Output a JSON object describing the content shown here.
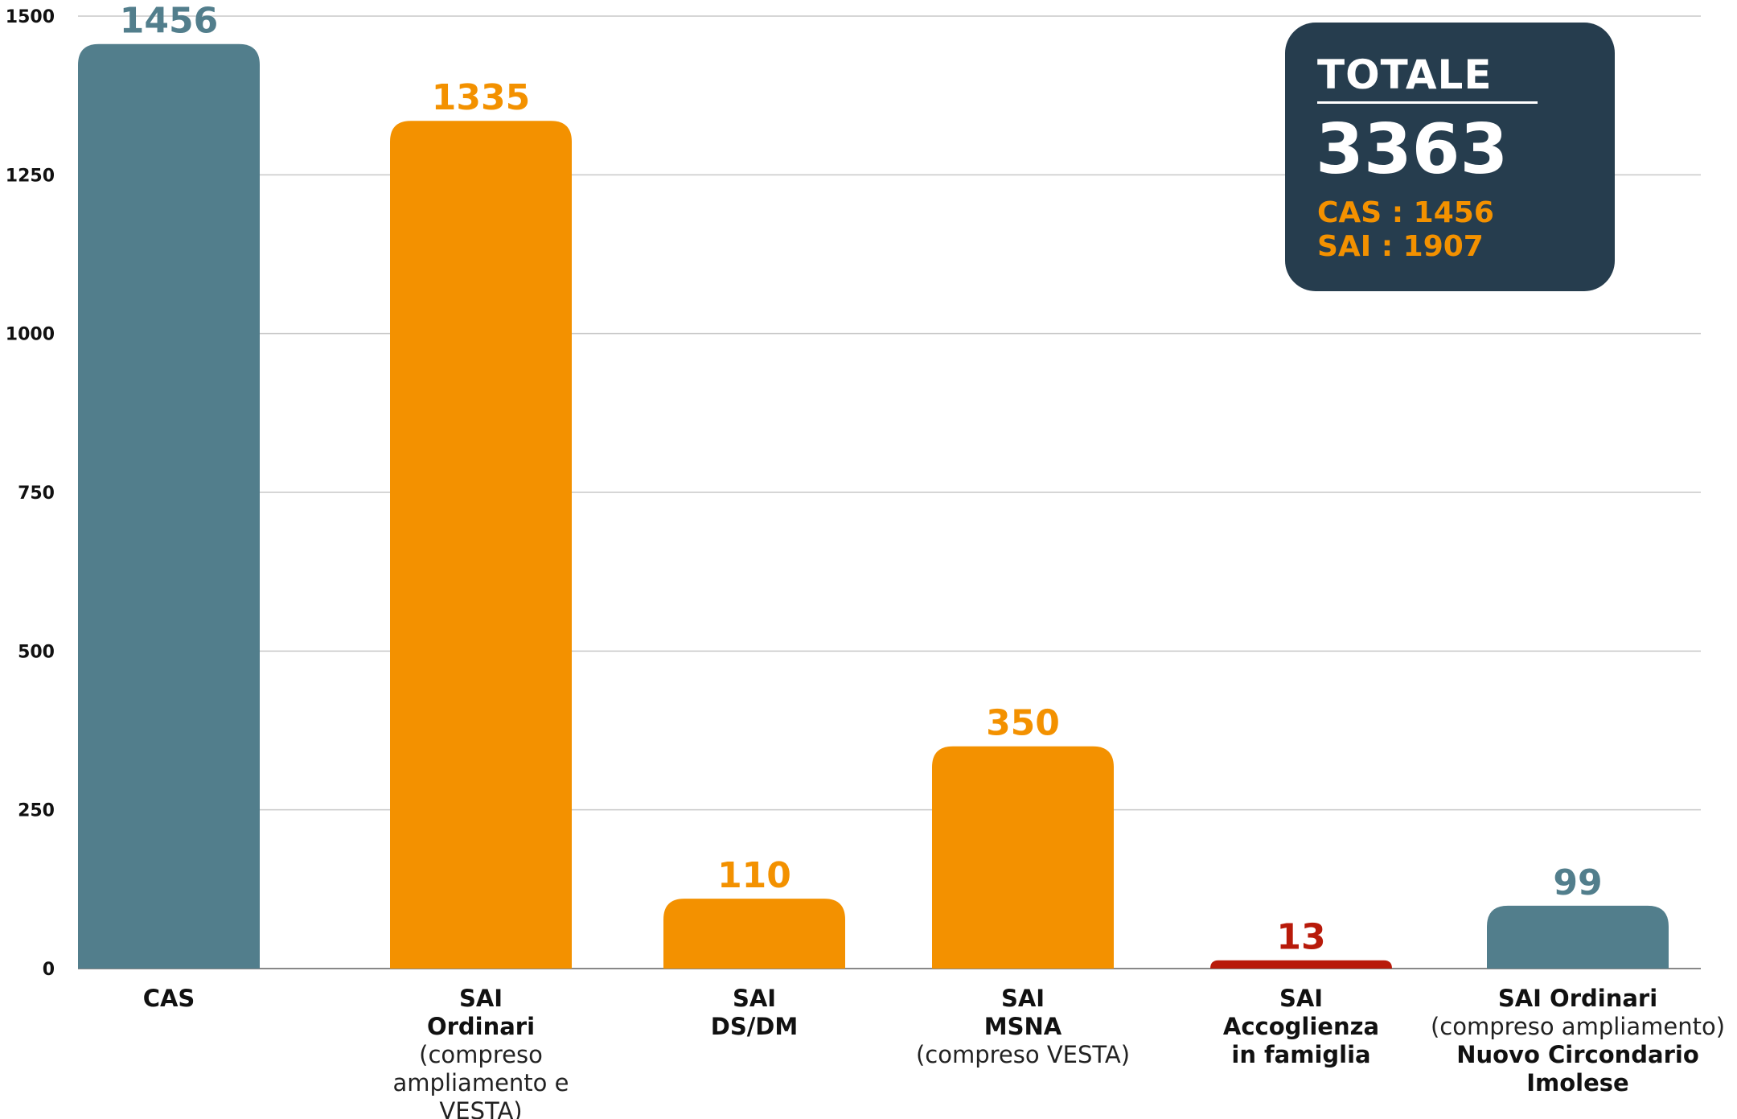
{
  "chart_data": {
    "type": "bar",
    "categories": [
      [
        "CAS"
      ],
      [
        "SAI",
        "Ordinari",
        "(compreso",
        "ampliamento e",
        "VESTA)"
      ],
      [
        "SAI",
        "DS/DM"
      ],
      [
        "SAI",
        "MSNA",
        "(compreso VESTA)"
      ],
      [
        "SAI",
        "Accoglienza",
        "in famiglia"
      ],
      [
        "SAI Ordinari",
        "(compreso ampliamento)",
        "Nuovo Circondario",
        "Imolese"
      ]
    ],
    "category_bold": [
      [
        true
      ],
      [
        true,
        true,
        false,
        false,
        false
      ],
      [
        true,
        true
      ],
      [
        true,
        true,
        false
      ],
      [
        true,
        true,
        true
      ],
      [
        true,
        false,
        true,
        true
      ]
    ],
    "values": [
      1456,
      1335,
      110,
      350,
      13,
      99
    ],
    "value_labels": [
      "1456",
      "1335",
      "110",
      "350",
      "13",
      "99"
    ],
    "bar_colors": [
      "#527e8c",
      "#f39100",
      "#f39100",
      "#f39100",
      "#b81a0a",
      "#527e8c"
    ],
    "yticks": [
      0,
      250,
      500,
      750,
      1000,
      1250,
      1500
    ],
    "ylim": [
      0,
      1500
    ],
    "grid": true,
    "xlabel": "",
    "ylabel": "",
    "title": ""
  },
  "totale": {
    "label": "TOTALE",
    "value": "3363",
    "cas_line": "CAS : 1456",
    "sai_line": "SAI : 1907",
    "bg_color": "#263d4e",
    "accent_color": "#f39100"
  }
}
